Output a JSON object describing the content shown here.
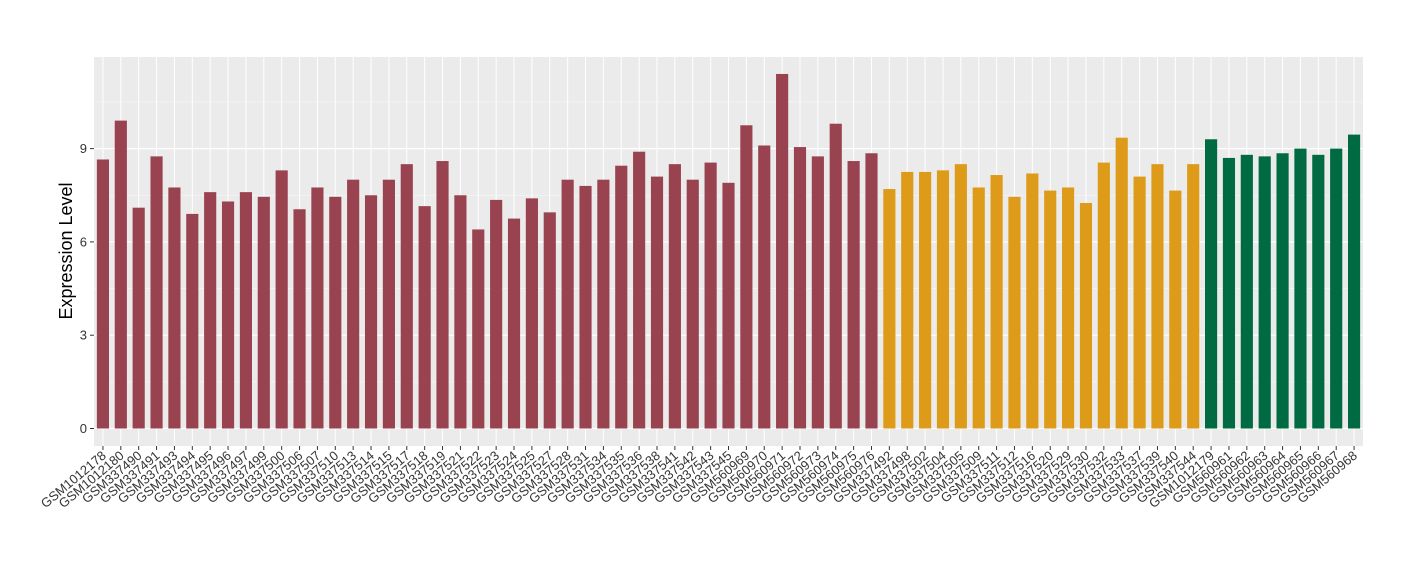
{
  "chart_data": {
    "type": "bar",
    "ylabel": "Expression Level",
    "ylim": [
      0,
      12
    ],
    "yticks": [
      0,
      3,
      6,
      9
    ],
    "grid": true,
    "legend": "none",
    "colors": {
      "group1": "#9A4350",
      "group2": "#DE9B19",
      "group3": "#006A42"
    },
    "categories": [
      "GSM1012178",
      "GSM1012180",
      "GSM337490",
      "GSM337491",
      "GSM337493",
      "GSM337494",
      "GSM337495",
      "GSM337496",
      "GSM337497",
      "GSM337499",
      "GSM337500",
      "GSM337506",
      "GSM337507",
      "GSM337510",
      "GSM337513",
      "GSM337514",
      "GSM337515",
      "GSM337517",
      "GSM337518",
      "GSM337519",
      "GSM337521",
      "GSM337522",
      "GSM337523",
      "GSM337524",
      "GSM337525",
      "GSM337527",
      "GSM337528",
      "GSM337531",
      "GSM337534",
      "GSM337535",
      "GSM337536",
      "GSM337538",
      "GSM337541",
      "GSM337542",
      "GSM337543",
      "GSM337545",
      "GSM560969",
      "GSM560970",
      "GSM560971",
      "GSM560972",
      "GSM560973",
      "GSM560974",
      "GSM560975",
      "GSM560976",
      "GSM337492",
      "GSM337498",
      "GSM337502",
      "GSM337504",
      "GSM337505",
      "GSM337509",
      "GSM337511",
      "GSM337512",
      "GSM337516",
      "GSM337520",
      "GSM337529",
      "GSM337530",
      "GSM337532",
      "GSM337533",
      "GSM337537",
      "GSM337539",
      "GSM337540",
      "GSM337544",
      "GSM1012179",
      "GSM560961",
      "GSM560962",
      "GSM560963",
      "GSM560964",
      "GSM560965",
      "GSM560966",
      "GSM560967",
      "GSM560968"
    ],
    "values": [
      8.65,
      9.9,
      7.1,
      8.75,
      7.75,
      6.9,
      7.6,
      7.3,
      7.6,
      7.45,
      8.3,
      7.05,
      7.75,
      7.45,
      8.0,
      7.5,
      8.0,
      8.5,
      7.15,
      8.6,
      7.5,
      6.4,
      7.35,
      6.75,
      7.4,
      6.95,
      8.0,
      7.8,
      8.0,
      8.45,
      8.9,
      8.1,
      8.5,
      8.0,
      8.55,
      7.9,
      9.75,
      9.1,
      11.4,
      9.05,
      8.75,
      9.8,
      8.6,
      8.85,
      7.7,
      8.25,
      8.25,
      8.3,
      8.5,
      7.75,
      8.15,
      7.45,
      8.2,
      7.65,
      7.75,
      7.25,
      8.55,
      9.35,
      8.1,
      8.5,
      7.65,
      8.5,
      9.3,
      8.7,
      8.8,
      8.75,
      8.85,
      9.0,
      8.8,
      9.0,
      9.45
    ],
    "groups": [
      1,
      1,
      1,
      1,
      1,
      1,
      1,
      1,
      1,
      1,
      1,
      1,
      1,
      1,
      1,
      1,
      1,
      1,
      1,
      1,
      1,
      1,
      1,
      1,
      1,
      1,
      1,
      1,
      1,
      1,
      1,
      1,
      1,
      1,
      1,
      1,
      1,
      1,
      1,
      1,
      1,
      1,
      1,
      1,
      2,
      2,
      2,
      2,
      2,
      2,
      2,
      2,
      2,
      2,
      2,
      2,
      2,
      2,
      2,
      2,
      2,
      2,
      3,
      3,
      3,
      3,
      3,
      3,
      3,
      3,
      3
    ]
  }
}
